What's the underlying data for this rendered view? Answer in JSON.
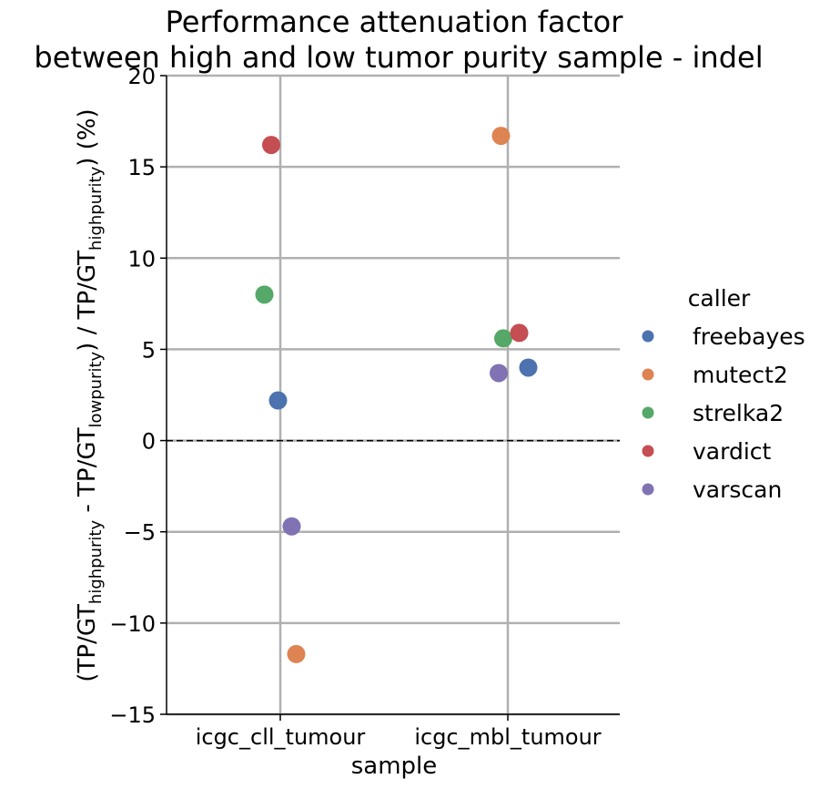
{
  "chart_data": {
    "type": "scatter",
    "title_lines": [
      "Performance attenuation factor",
      "between high and low tumor purity sample - indel"
    ],
    "xlabel": "sample",
    "ylabel": {
      "p1": "(TP/GT",
      "s1": "highpurity",
      "p2": " - TP/GT",
      "s2": "lowpurity",
      "p3": ") / TP/GT",
      "s3": "highpurity",
      "p4": ")  (%)"
    },
    "categories": [
      "icgc_cll_tumour",
      "icgc_mbl_tumour"
    ],
    "ylim": [
      -15,
      20
    ],
    "yticks": [
      -15,
      -10,
      -5,
      0,
      5,
      10,
      15,
      20
    ],
    "ytick_labels": [
      "−15",
      "−10",
      "−5",
      "0",
      "5",
      "10",
      "15",
      "20"
    ],
    "reference_line": 0,
    "grid": true,
    "legend": {
      "title": "caller",
      "placement": "right"
    },
    "series": [
      {
        "name": "freebayes",
        "color": "#4c72b0",
        "values": [
          2.2,
          4.0
        ],
        "jitter": [
          -0.01,
          0.09
        ]
      },
      {
        "name": "mutect2",
        "color": "#dd8452",
        "values": [
          -11.7,
          16.7
        ],
        "jitter": [
          0.07,
          -0.03
        ]
      },
      {
        "name": "strelka2",
        "color": "#55a868",
        "values": [
          8.0,
          5.6
        ],
        "jitter": [
          -0.07,
          -0.02
        ]
      },
      {
        "name": "vardict",
        "color": "#c44e52",
        "values": [
          16.2,
          5.9
        ],
        "jitter": [
          -0.04,
          0.05
        ]
      },
      {
        "name": "varscan",
        "color": "#8172b3",
        "values": [
          -4.7,
          3.7
        ],
        "jitter": [
          0.05,
          -0.04
        ]
      }
    ]
  }
}
